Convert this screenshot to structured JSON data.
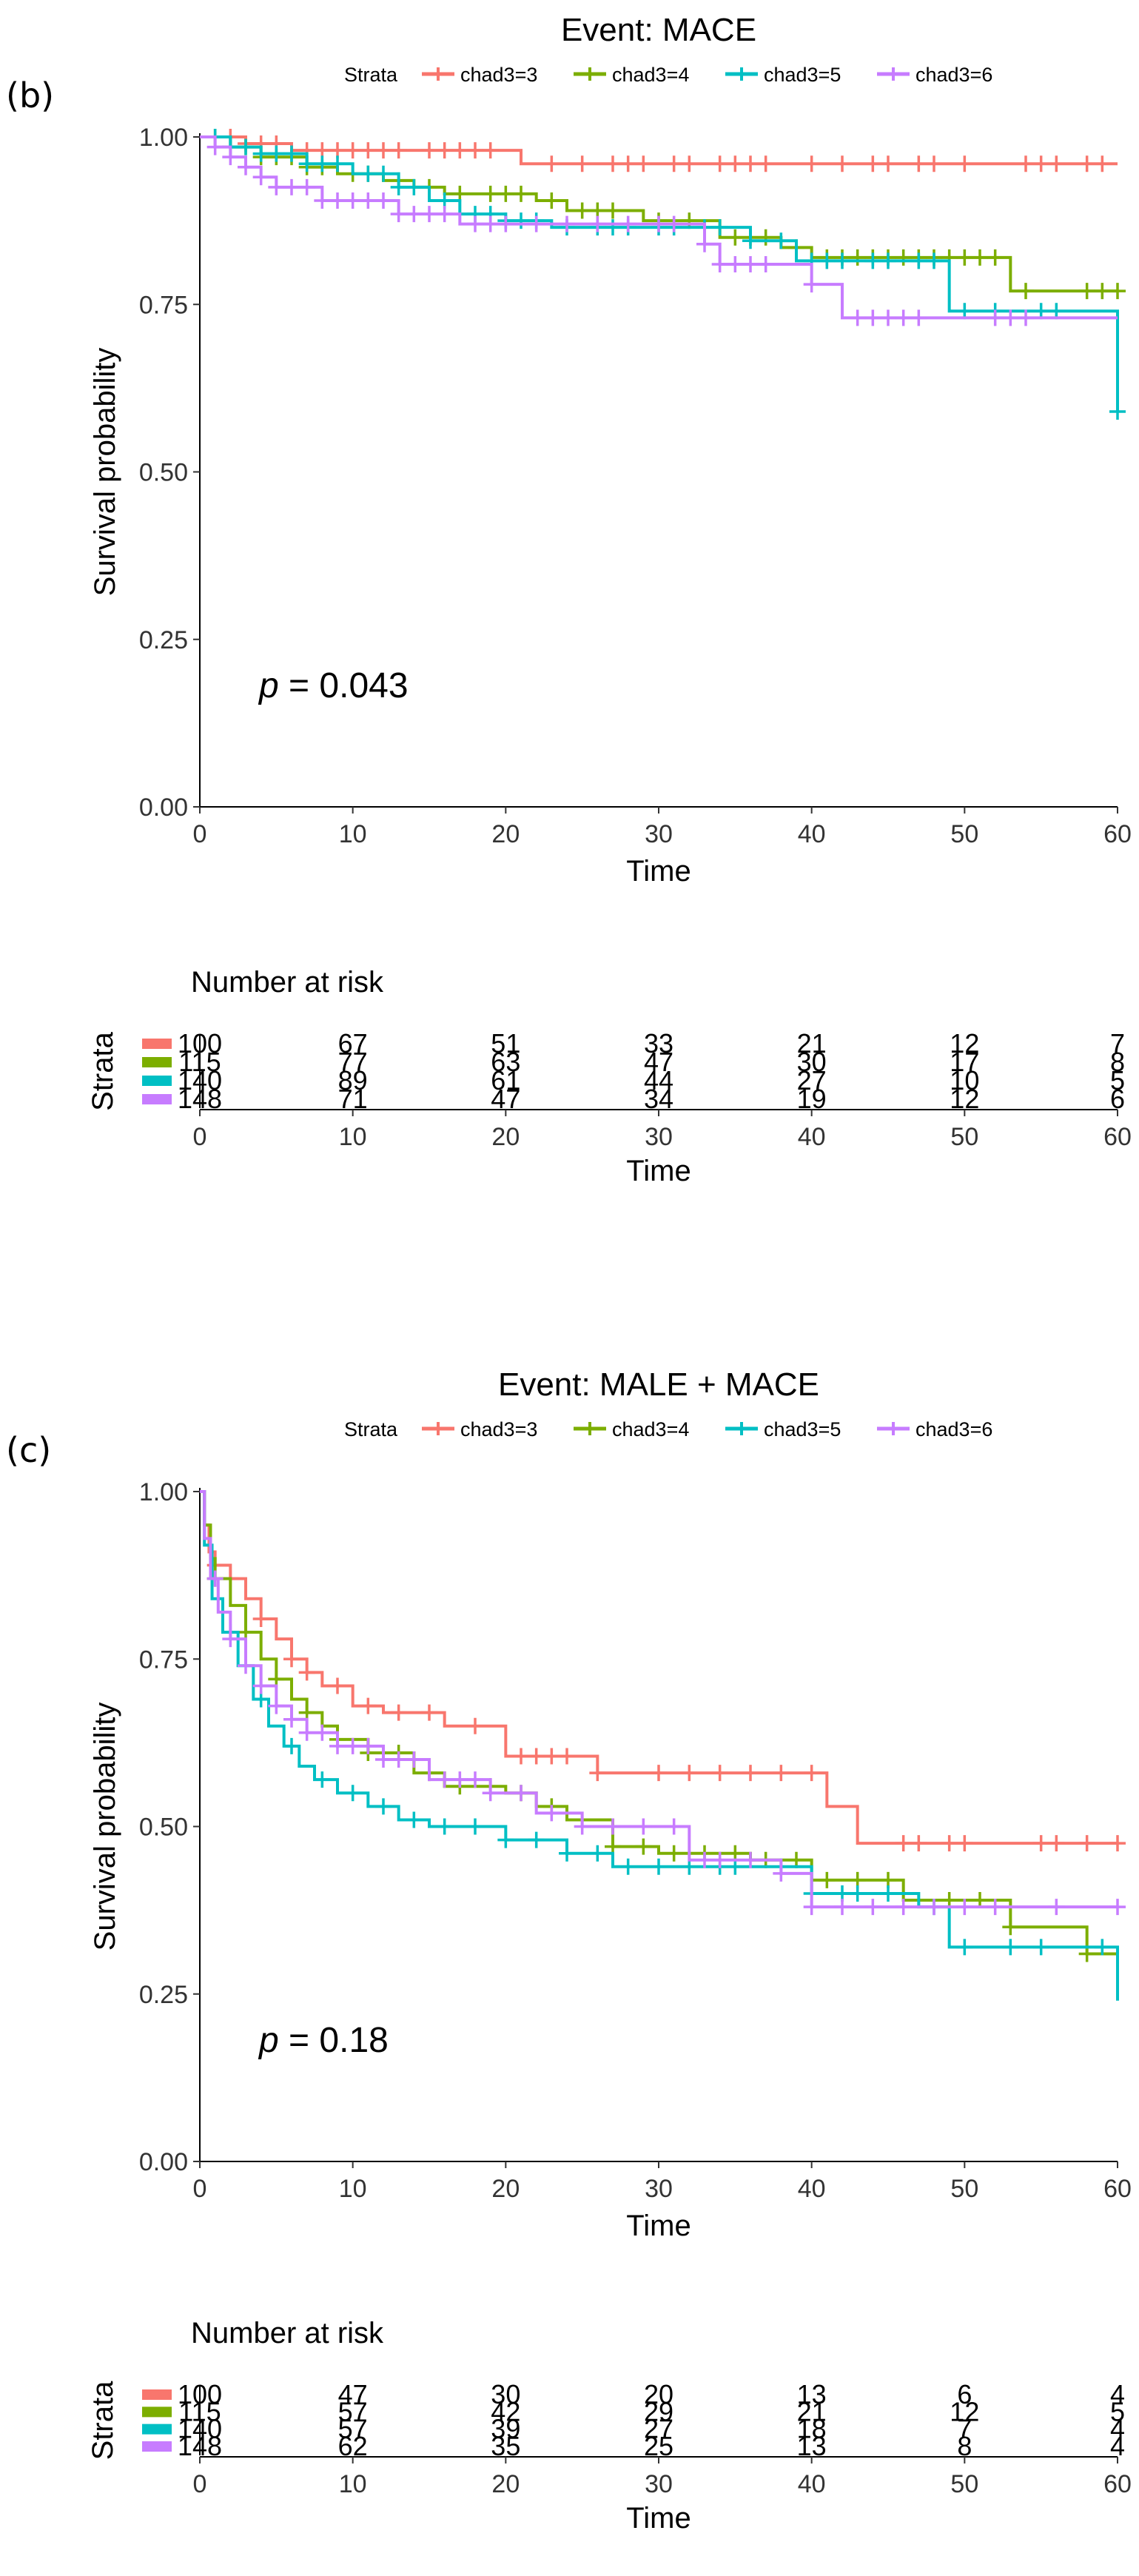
{
  "chart_data": [
    {
      "type": "line",
      "subtype": "kaplan-meier survival curve with number-at-risk table",
      "panel_label": "(b)",
      "title": "Event: MACE",
      "legend_title": "Strata",
      "legend_position": "top",
      "xlabel": "Time",
      "ylabel": "Survival probability",
      "xlim": [
        0,
        60
      ],
      "ylim": [
        0,
        1
      ],
      "xticks": [
        "0",
        "10",
        "20",
        "30",
        "40",
        "50",
        "60"
      ],
      "yticks": [
        "0.00",
        "0.25",
        "0.50",
        "0.75",
        "1.00"
      ],
      "p_value": {
        "prefix": "p",
        "text": " = 0.043"
      },
      "series": [
        {
          "name": "chad3=3",
          "color": "#F8766D",
          "steps": [
            [
              0,
              1.0
            ],
            [
              3,
              0.99
            ],
            [
              6,
              0.98
            ],
            [
              21,
              0.96
            ],
            [
              60,
              0.96
            ]
          ],
          "censors": [
            1,
            2,
            3,
            4,
            5,
            7,
            8,
            9,
            10,
            11,
            12,
            13,
            15,
            16,
            17,
            18,
            19,
            23,
            25,
            27,
            28,
            29,
            31,
            32,
            34,
            35,
            36,
            37,
            40,
            42,
            44,
            45,
            47,
            48,
            50,
            54,
            55,
            56,
            58,
            59
          ]
        },
        {
          "name": "chad3=4",
          "color": "#7CAE00",
          "steps": [
            [
              0,
              1.0
            ],
            [
              2,
              0.985
            ],
            [
              4,
              0.97
            ],
            [
              7,
              0.955
            ],
            [
              9,
              0.945
            ],
            [
              12,
              0.935
            ],
            [
              14,
              0.925
            ],
            [
              16,
              0.915
            ],
            [
              22,
              0.905
            ],
            [
              24,
              0.89
            ],
            [
              29,
              0.875
            ],
            [
              34,
              0.85
            ],
            [
              38,
              0.835
            ],
            [
              40,
              0.82
            ],
            [
              53,
              0.77
            ],
            [
              60,
              0.77
            ]
          ],
          "censors": [
            1,
            2,
            3,
            4,
            5,
            6,
            7,
            8,
            10,
            11,
            13,
            15,
            17,
            19,
            20,
            21,
            23,
            25,
            26,
            27,
            30,
            32,
            35,
            36,
            37,
            39,
            41,
            42,
            43,
            44,
            45,
            46,
            47,
            48,
            49,
            50,
            51,
            52,
            54,
            58,
            59,
            60
          ]
        },
        {
          "name": "chad3=5",
          "color": "#00BFC4",
          "steps": [
            [
              0,
              1.0
            ],
            [
              2,
              0.985
            ],
            [
              4,
              0.975
            ],
            [
              7,
              0.96
            ],
            [
              10,
              0.945
            ],
            [
              13,
              0.925
            ],
            [
              15,
              0.905
            ],
            [
              17,
              0.885
            ],
            [
              20,
              0.875
            ],
            [
              23,
              0.865
            ],
            [
              36,
              0.845
            ],
            [
              39,
              0.815
            ],
            [
              49,
              0.74
            ],
            [
              60,
              0.74
            ],
            [
              60,
              0.59
            ]
          ],
          "censors": [
            1,
            2,
            3,
            4,
            5,
            6,
            7,
            8,
            9,
            11,
            12,
            13,
            14,
            16,
            18,
            19,
            20,
            21,
            22,
            24,
            26,
            27,
            28,
            30,
            31,
            33,
            34,
            36,
            38,
            40,
            41,
            42,
            44,
            45,
            47,
            48,
            50,
            52,
            55,
            56,
            60
          ]
        },
        {
          "name": "chad3=6",
          "color": "#C77CFF",
          "steps": [
            [
              0,
              1.0
            ],
            [
              1,
              0.985
            ],
            [
              2,
              0.97
            ],
            [
              3,
              0.955
            ],
            [
              4,
              0.94
            ],
            [
              5,
              0.925
            ],
            [
              8,
              0.905
            ],
            [
              13,
              0.885
            ],
            [
              17,
              0.87
            ],
            [
              33,
              0.84
            ],
            [
              34,
              0.81
            ],
            [
              40,
              0.78
            ],
            [
              42,
              0.73
            ],
            [
              60,
              0.73
            ]
          ],
          "censors": [
            1,
            2,
            3,
            4,
            5,
            6,
            7,
            8,
            9,
            10,
            11,
            12,
            13,
            14,
            15,
            16,
            18,
            19,
            20,
            22,
            24,
            26,
            28,
            30,
            31,
            33,
            34,
            35,
            36,
            37,
            40,
            43,
            44,
            45,
            46,
            47,
            52,
            53,
            54
          ]
        }
      ],
      "risk_table": {
        "title": "Number at risk",
        "ylabel": "Strata",
        "xlabel": "Time",
        "rows": [
          {
            "strata": "chad3=3",
            "values": [
              "100",
              "67",
              "51",
              "33",
              "21",
              "12",
              "7"
            ]
          },
          {
            "strata": "chad3=4",
            "values": [
              "115",
              "77",
              "63",
              "47",
              "30",
              "17",
              "8"
            ]
          },
          {
            "strata": "chad3=5",
            "values": [
              "140",
              "89",
              "61",
              "44",
              "27",
              "10",
              "5"
            ]
          },
          {
            "strata": "chad3=6",
            "values": [
              "148",
              "71",
              "47",
              "34",
              "19",
              "12",
              "6"
            ]
          }
        ]
      }
    },
    {
      "type": "line",
      "subtype": "kaplan-meier survival curve with number-at-risk table",
      "panel_label": "(c)",
      "title": "Event: MALE + MACE",
      "legend_title": "Strata",
      "legend_position": "top",
      "xlabel": "Time",
      "ylabel": "Survival probability",
      "xlim": [
        0,
        60
      ],
      "ylim": [
        0,
        1
      ],
      "xticks": [
        "0",
        "10",
        "20",
        "30",
        "40",
        "50",
        "60"
      ],
      "yticks": [
        "0.00",
        "0.25",
        "0.50",
        "0.75",
        "1.00"
      ],
      "p_value": {
        "prefix": "p",
        "text": " = 0.18"
      },
      "series": [
        {
          "name": "chad3=3",
          "color": "#F8766D",
          "steps": [
            [
              0,
              1.0
            ],
            [
              0.3,
              0.95
            ],
            [
              0.6,
              0.91
            ],
            [
              1,
              0.89
            ],
            [
              2,
              0.87
            ],
            [
              3,
              0.84
            ],
            [
              4,
              0.81
            ],
            [
              5,
              0.78
            ],
            [
              6,
              0.75
            ],
            [
              7,
              0.73
            ],
            [
              8,
              0.71
            ],
            [
              10,
              0.68
            ],
            [
              12,
              0.67
            ],
            [
              16,
              0.65
            ],
            [
              20,
              0.605
            ],
            [
              26,
              0.58
            ],
            [
              41,
              0.53
            ],
            [
              43,
              0.475
            ],
            [
              60,
              0.475
            ]
          ],
          "censors": [
            1,
            2,
            4,
            6,
            7,
            9,
            11,
            13,
            15,
            18,
            21,
            22,
            23,
            24,
            26,
            30,
            32,
            34,
            36,
            38,
            40,
            46,
            47,
            49,
            50,
            55,
            56,
            58,
            60
          ]
        },
        {
          "name": "chad3=4",
          "color": "#7CAE00",
          "steps": [
            [
              0,
              1.0
            ],
            [
              0.3,
              0.95
            ],
            [
              0.7,
              0.9
            ],
            [
              1,
              0.87
            ],
            [
              2,
              0.83
            ],
            [
              3,
              0.79
            ],
            [
              4,
              0.75
            ],
            [
              5,
              0.72
            ],
            [
              6,
              0.69
            ],
            [
              7,
              0.67
            ],
            [
              8,
              0.65
            ],
            [
              9,
              0.63
            ],
            [
              11,
              0.61
            ],
            [
              14,
              0.58
            ],
            [
              16,
              0.56
            ],
            [
              20,
              0.55
            ],
            [
              22,
              0.53
            ],
            [
              24,
              0.51
            ],
            [
              27,
              0.47
            ],
            [
              30,
              0.46
            ],
            [
              36,
              0.45
            ],
            [
              40,
              0.42
            ],
            [
              46,
              0.39
            ],
            [
              53,
              0.35
            ],
            [
              58,
              0.31
            ],
            [
              60,
              0.31
            ]
          ],
          "censors": [
            1,
            3,
            5,
            7,
            9,
            11,
            13,
            15,
            17,
            19,
            21,
            23,
            25,
            27,
            29,
            31,
            33,
            35,
            37,
            39,
            41,
            43,
            45,
            47,
            49,
            51,
            53,
            58
          ]
        },
        {
          "name": "chad3=5",
          "color": "#00BFC4",
          "steps": [
            [
              0,
              1.0
            ],
            [
              0.3,
              0.92
            ],
            [
              0.8,
              0.84
            ],
            [
              1.5,
              0.79
            ],
            [
              2.5,
              0.74
            ],
            [
              3.5,
              0.69
            ],
            [
              4.5,
              0.65
            ],
            [
              5.5,
              0.62
            ],
            [
              6.5,
              0.59
            ],
            [
              7.5,
              0.57
            ],
            [
              9,
              0.55
            ],
            [
              11,
              0.53
            ],
            [
              13,
              0.51
            ],
            [
              15,
              0.5
            ],
            [
              20,
              0.48
            ],
            [
              24,
              0.46
            ],
            [
              27,
              0.44
            ],
            [
              36,
              0.44
            ],
            [
              40,
              0.4
            ],
            [
              47,
              0.38
            ],
            [
              49,
              0.32
            ],
            [
              60,
              0.32
            ],
            [
              60,
              0.24
            ]
          ],
          "censors": [
            2,
            4,
            6,
            8,
            10,
            12,
            14,
            16,
            18,
            20,
            22,
            24,
            26,
            28,
            30,
            32,
            34,
            35,
            38,
            40,
            42,
            43,
            45,
            48,
            50,
            53,
            55,
            59
          ]
        },
        {
          "name": "chad3=6",
          "color": "#C77CFF",
          "steps": [
            [
              0,
              1.0
            ],
            [
              0.3,
              0.93
            ],
            [
              0.7,
              0.87
            ],
            [
              1.2,
              0.82
            ],
            [
              2,
              0.78
            ],
            [
              3,
              0.74
            ],
            [
              4,
              0.71
            ],
            [
              5,
              0.68
            ],
            [
              6,
              0.66
            ],
            [
              7,
              0.64
            ],
            [
              9,
              0.62
            ],
            [
              12,
              0.6
            ],
            [
              15,
              0.57
            ],
            [
              19,
              0.55
            ],
            [
              22,
              0.52
            ],
            [
              25,
              0.5
            ],
            [
              32,
              0.45
            ],
            [
              38,
              0.43
            ],
            [
              40,
              0.38
            ],
            [
              60,
              0.38
            ]
          ],
          "censors": [
            1,
            2,
            3,
            4,
            5,
            6,
            7,
            8,
            9,
            10,
            11,
            12,
            13,
            14,
            16,
            17,
            18,
            19,
            21,
            23,
            25,
            27,
            29,
            31,
            33,
            34,
            36,
            38,
            40,
            42,
            44,
            46,
            48,
            50,
            52,
            56,
            60
          ]
        }
      ],
      "risk_table": {
        "title": "Number at risk",
        "ylabel": "Strata",
        "xlabel": "Time",
        "rows": [
          {
            "strata": "chad3=3",
            "values": [
              "100",
              "47",
              "30",
              "20",
              "13",
              "6",
              "4"
            ]
          },
          {
            "strata": "chad3=4",
            "values": [
              "115",
              "57",
              "42",
              "29",
              "21",
              "12",
              "5"
            ]
          },
          {
            "strata": "chad3=5",
            "values": [
              "140",
              "57",
              "39",
              "27",
              "18",
              "7",
              "4"
            ]
          },
          {
            "strata": "chad3=6",
            "values": [
              "148",
              "62",
              "35",
              "25",
              "13",
              "8",
              "4"
            ]
          }
        ]
      }
    }
  ]
}
